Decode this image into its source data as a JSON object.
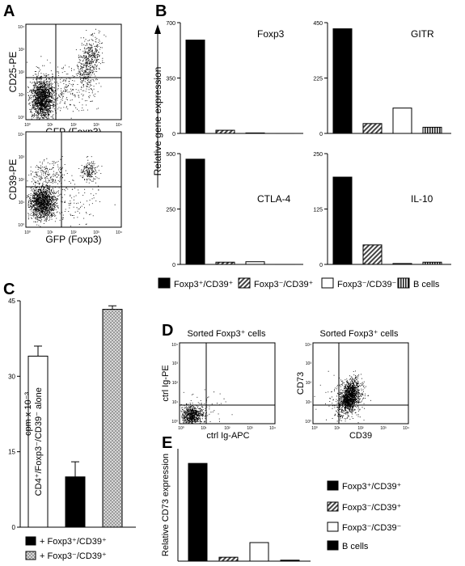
{
  "panel_letters": {
    "a": "A",
    "b": "B",
    "c": "C",
    "d": "D",
    "e": "E"
  },
  "panel_a": {
    "top": {
      "ylabel": "CD25-PE",
      "xlabel": "GFP (Foxp3)"
    },
    "bottom": {
      "ylabel": "CD39-PE",
      "xlabel": "GFP (Foxp3)"
    },
    "tick_labels": [
      "10⁰",
      "10¹",
      "10²",
      "10³",
      "10⁴"
    ]
  },
  "panel_d": {
    "left": {
      "title": "Sorted Foxp3⁺ cells",
      "ylabel": "ctrl Ig-PE",
      "xlabel": "ctrl Ig-APC"
    },
    "right": {
      "title": "Sorted Foxp3⁺ cells",
      "ylabel": "CD73",
      "xlabel": "CD39"
    },
    "tick_labels": [
      "10⁰",
      "10¹",
      "10²",
      "10³",
      "10⁴"
    ]
  },
  "panel_b_ylabel": "Relative gene expression",
  "legend_b": [
    {
      "label": "Foxp3⁺/CD39⁺",
      "pattern": "solid"
    },
    {
      "label": "Foxp3⁻/CD39⁺",
      "pattern": "diag"
    },
    {
      "label": "Foxp3⁻/CD39⁻",
      "pattern": "white"
    },
    {
      "label": "B cells",
      "pattern": "vert"
    }
  ],
  "legend_c": [
    {
      "label": "+ Foxp3⁺/CD39⁺",
      "pattern": "solid"
    },
    {
      "label": "+ Foxp3⁻/CD39⁺",
      "pattern": "grid"
    }
  ],
  "legend_e": [
    {
      "label": "Foxp3⁺/CD39⁺",
      "pattern": "solid"
    },
    {
      "label": "Foxp3⁻/CD39⁺",
      "pattern": "diag"
    },
    {
      "label": "Foxp3⁻/CD39⁻",
      "pattern": "white"
    },
    {
      "label": "B cells",
      "pattern": "solid"
    }
  ],
  "chart_data": [
    {
      "id": "B-Foxp3",
      "type": "bar",
      "title": "Foxp3",
      "ylabel": "Relative gene expression",
      "categories": [
        "Foxp3⁺/CD39⁺",
        "Foxp3⁻/CD39⁺",
        "Foxp3⁻/CD39⁻",
        "B cells"
      ],
      "values": [
        590,
        20,
        3,
        0
      ],
      "ylim": [
        0,
        700
      ],
      "yticks": [
        0,
        350,
        700
      ],
      "patterns": [
        "solid",
        "diag",
        "white",
        "vert"
      ]
    },
    {
      "id": "B-GITR",
      "type": "bar",
      "title": "GITR",
      "categories": [
        "Foxp3⁺/CD39⁺",
        "Foxp3⁻/CD39⁺",
        "Foxp3⁻/CD39⁻",
        "B cells"
      ],
      "values": [
        425,
        40,
        103,
        25
      ],
      "ylim": [
        0,
        450
      ],
      "yticks": [
        0,
        225,
        450
      ],
      "patterns": [
        "solid",
        "diag",
        "white",
        "vert"
      ]
    },
    {
      "id": "B-CTLA-4",
      "type": "bar",
      "title": "CTLA-4",
      "categories": [
        "Foxp3⁺/CD39⁺",
        "Foxp3⁻/CD39⁺",
        "Foxp3⁻/CD39⁻",
        "B cells"
      ],
      "values": [
        475,
        10,
        12,
        0
      ],
      "ylim": [
        0,
        500
      ],
      "yticks": [
        0,
        250,
        500
      ],
      "patterns": [
        "solid",
        "diag",
        "white",
        "vert"
      ]
    },
    {
      "id": "B-IL-10",
      "type": "bar",
      "title": "IL-10",
      "categories": [
        "Foxp3⁺/CD39⁺",
        "Foxp3⁻/CD39⁺",
        "Foxp3⁻/CD39⁻",
        "B cells"
      ],
      "values": [
        197,
        44,
        2,
        5
      ],
      "ylim": [
        0,
        250
      ],
      "yticks": [
        0,
        125,
        250
      ],
      "patterns": [
        "solid",
        "diag",
        "white",
        "vert"
      ]
    },
    {
      "id": "C",
      "type": "bar",
      "title": "",
      "ylabel": "cpm x 10⁻³",
      "categories": [
        "CD4⁺/Foxp3⁻/CD39⁻ alone",
        "+ Foxp3⁺/CD39⁺",
        "+ Foxp3⁻/CD39⁺"
      ],
      "values": [
        34,
        10,
        43.3
      ],
      "errors": [
        2,
        3,
        0.7
      ],
      "ylim": [
        0,
        45
      ],
      "yticks": [
        0,
        15,
        30,
        45
      ],
      "bar_text": [
        "CD4⁺/Foxp3⁻/CD39⁻ alone",
        "",
        ""
      ],
      "patterns": [
        "white",
        "solid",
        "grid"
      ]
    },
    {
      "id": "E",
      "type": "bar",
      "title": "",
      "ylabel": "Relative CD73 expression",
      "categories": [
        "Foxp3⁺/CD39⁺",
        "Foxp3⁻/CD39⁺",
        "Foxp3⁻/CD39⁻",
        "B cells"
      ],
      "values": [
        100,
        4,
        19,
        1
      ],
      "ylim": [
        0,
        115
      ],
      "yticks": [],
      "patterns": [
        "solid",
        "diag",
        "white",
        "solid"
      ]
    }
  ]
}
